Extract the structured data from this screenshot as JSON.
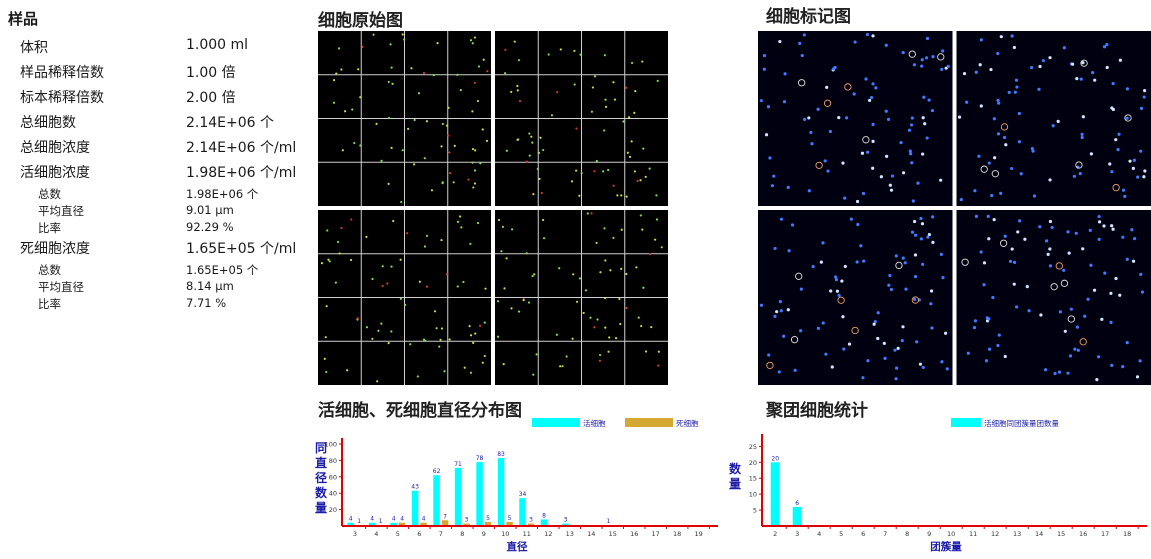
{
  "sample": {
    "title": "样品",
    "rows": [
      {
        "label": "体积",
        "value": "1.000 ml"
      },
      {
        "label": "样品稀释倍数",
        "value": "1.00 倍"
      },
      {
        "label": "标本稀释倍数",
        "value": "2.00 倍"
      },
      {
        "label": "总细胞数",
        "value": "2.14E+06 个"
      },
      {
        "label": "总细胞浓度",
        "value": "2.14E+06 个/ml"
      },
      {
        "label": "活细胞浓度",
        "value": "1.98E+06 个/ml"
      }
    ],
    "live_sub": [
      {
        "label": "总数",
        "value": "1.98E+06 个"
      },
      {
        "label": "平均直径",
        "value": "9.01 μm"
      },
      {
        "label": "比率",
        "value": "92.29 %"
      }
    ],
    "dead": {
      "label": "死细胞浓度",
      "value": "1.65E+05 个/ml"
    },
    "dead_sub": [
      {
        "label": "总数",
        "value": "1.65E+05 个"
      },
      {
        "label": "平均直径",
        "value": "8.14 μm"
      },
      {
        "label": "比率",
        "value": "7.71 %"
      }
    ]
  },
  "sections": {
    "raw_image": "细胞原始图",
    "marked_image": "细胞标记图",
    "diameter_chart": "活细胞、死细胞直径分布图",
    "cluster_chart": "聚团细胞统计"
  },
  "colors": {
    "live": "#00ffff",
    "dead": "#d4a832",
    "axis": "#e00000",
    "label": "#1c1ca8"
  },
  "chart_data": [
    {
      "type": "bar",
      "title": "活细胞、死细胞直径分布图",
      "xlabel": "直径",
      "ylabel": "同直径数量",
      "ylim": [
        0,
        100
      ],
      "yticks": [
        20,
        40,
        60,
        80,
        100
      ],
      "categories": [
        "3",
        "4",
        "5",
        "6",
        "7",
        "8",
        "9",
        "10",
        "11",
        "12",
        "13",
        "14",
        "15",
        "16",
        "17",
        "18",
        "19"
      ],
      "series": [
        {
          "name": "活细胞",
          "values": [
            4,
            4,
            4,
            43,
            62,
            71,
            78,
            83,
            34,
            8,
            3,
            0,
            1,
            0,
            0,
            0,
            0
          ]
        },
        {
          "name": "死细胞",
          "values": [
            1,
            1,
            4,
            4,
            7,
            3,
            5,
            5,
            3,
            0,
            0,
            0,
            0,
            0,
            0,
            0,
            0
          ]
        }
      ],
      "legend": "top-right"
    },
    {
      "type": "bar",
      "title": "聚团细胞统计",
      "xlabel": "团簇量",
      "ylabel": "数量",
      "ylim": [
        0,
        27
      ],
      "yticks": [
        5,
        10,
        15,
        20,
        25
      ],
      "categories": [
        "2",
        "3",
        "4",
        "5",
        "6",
        "7",
        "8",
        "9",
        "10",
        "11",
        "12",
        "13",
        "14",
        "15",
        "16",
        "17",
        "18"
      ],
      "series": [
        {
          "name": "活细胞同团簇量团数量",
          "values": [
            20,
            6,
            0,
            0,
            0,
            0,
            0,
            0,
            0,
            0,
            0,
            0,
            0,
            0,
            0,
            0,
            0
          ]
        }
      ],
      "legend": "top"
    }
  ]
}
